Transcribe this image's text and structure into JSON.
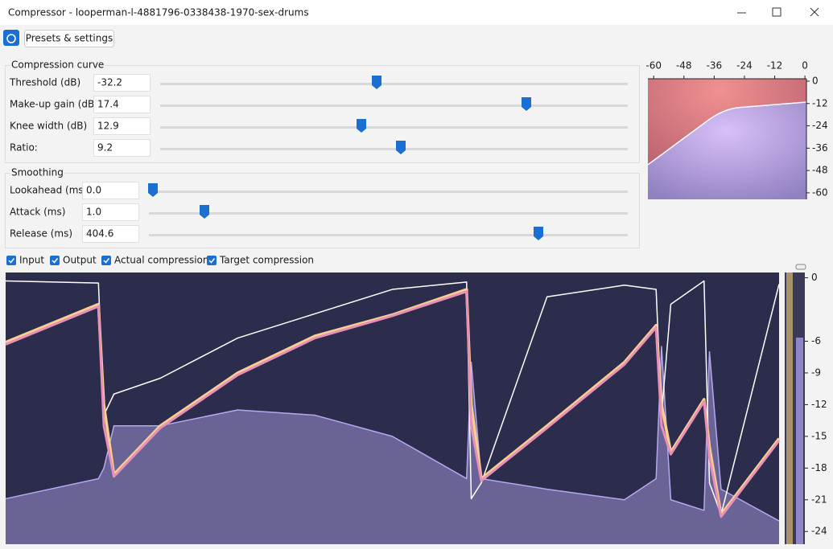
{
  "window": {
    "title": "Compressor - looperman-l-4881796-0338438-1970-sex-drums"
  },
  "toolbar": {
    "presets": "Presets & settings"
  },
  "compression_curve": {
    "title": "Compression curve",
    "fields": [
      {
        "label": "Threshold (dB)",
        "value": "-32.2"
      },
      {
        "label": "Make-up gain (dB)",
        "value": "17.4"
      },
      {
        "label": "Knee width (dB)",
        "value": "12.9"
      },
      {
        "label": "Ratio:",
        "value": "9.2"
      }
    ]
  },
  "smoothing": {
    "title": "Smoothing",
    "fields": [
      {
        "label": "Lookahead (ms)",
        "value": "0.0"
      },
      {
        "label": "Attack (ms)",
        "value": "1.0"
      },
      {
        "label": "Release (ms)",
        "value": "404.6"
      }
    ]
  },
  "checkboxes": [
    "Input",
    "Output",
    "Actual compression",
    "Target compression"
  ],
  "chart_data": [
    {
      "type": "curve",
      "xlim": [
        -62.3,
        0.6
      ],
      "ylim": [
        -63.5,
        1.3
      ],
      "xticks": [
        -60,
        -48,
        -36,
        -24,
        -12,
        0
      ],
      "yticks": [
        0,
        -12,
        -24,
        -36,
        -48,
        -60
      ],
      "color": "#ffffff"
    },
    {
      "type": "line",
      "xlim": [
        0,
        100
      ],
      "ylim": [
        -25.2,
        0.5
      ],
      "yticks": [
        0,
        -6,
        -9,
        -12,
        -15,
        -18,
        -21,
        -24
      ],
      "x": [
        0,
        12,
        12.7,
        14,
        20,
        30,
        40,
        50,
        59.6,
        60.2,
        61.5,
        70,
        80,
        84.1,
        84.8,
        86,
        90.3,
        91,
        92.5,
        100
      ],
      "series": [
        {
          "name": "Output",
          "color": "#b4a8f0",
          "values": [
            -20.9,
            -19,
            -18,
            -14,
            -14,
            -12.5,
            -13,
            -15,
            -19,
            -8,
            -19,
            -20,
            -21,
            -19,
            -6.5,
            -21,
            -22,
            -7,
            -20,
            -23
          ]
        },
        {
          "name": "Input",
          "color": "#ffffff",
          "values": [
            -0.3,
            -0.5,
            -13,
            -11,
            -9.5,
            -5.7,
            -3.4,
            -1.1,
            -0.4,
            -20.9,
            -19.4,
            -1.8,
            -0.7,
            -1.1,
            -13,
            -2.5,
            -0.3,
            -19.4,
            -22.4,
            -0.6
          ]
        },
        {
          "name": "Target compression",
          "color": "#f8d090",
          "values": [
            -6.1,
            -2.5,
            -12,
            -18.6,
            -14,
            -9,
            -5.5,
            -3.5,
            -1.1,
            -12,
            -19,
            -14,
            -8,
            -4.5,
            -12,
            -16.5,
            -11.5,
            -16,
            -22.4,
            -15.2
          ]
        },
        {
          "name": "Actual compression",
          "color": "#e890b8",
          "values": [
            -6.3,
            -2.7,
            -14,
            -18.8,
            -14.2,
            -9.2,
            -5.7,
            -3.6,
            -1.3,
            -14,
            -19.2,
            -14.2,
            -8.2,
            -4.7,
            -14,
            -16.7,
            -11.7,
            -17,
            -22.6,
            -15.4
          ]
        }
      ]
    }
  ]
}
